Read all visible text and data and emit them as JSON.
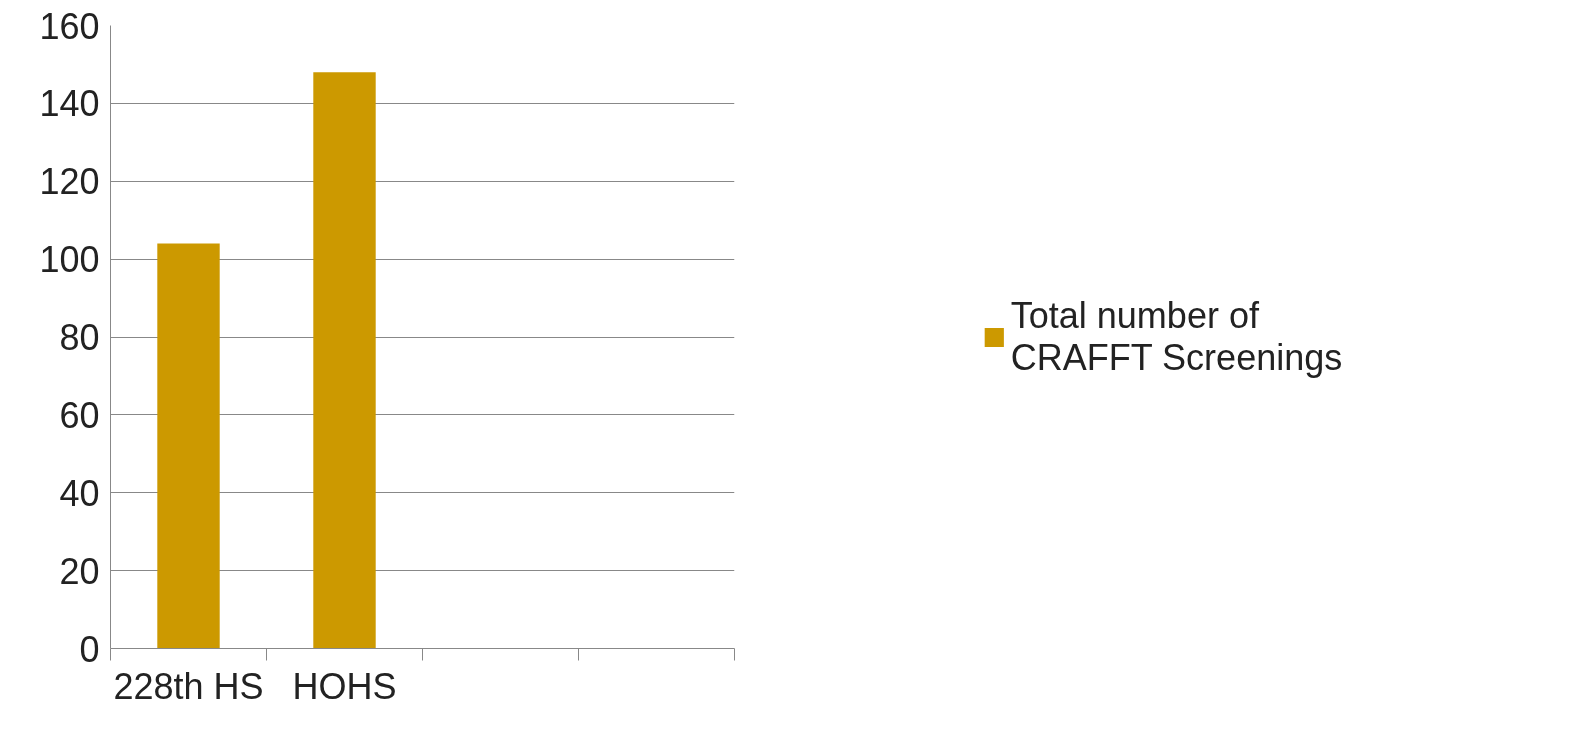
{
  "chart_data": {
    "type": "bar",
    "categories": [
      "228th HS",
      "HOHS",
      null,
      null
    ],
    "series": [
      {
        "name": "Total number of CRAFFT Screenings",
        "color": "#cc9900",
        "values": [
          104,
          148,
          null,
          null
        ]
      }
    ],
    "ylim": [
      0,
      160
    ],
    "yticks": [
      0,
      20,
      40,
      60,
      80,
      100,
      120,
      140,
      160
    ],
    "grid": "y",
    "legend": "right"
  }
}
